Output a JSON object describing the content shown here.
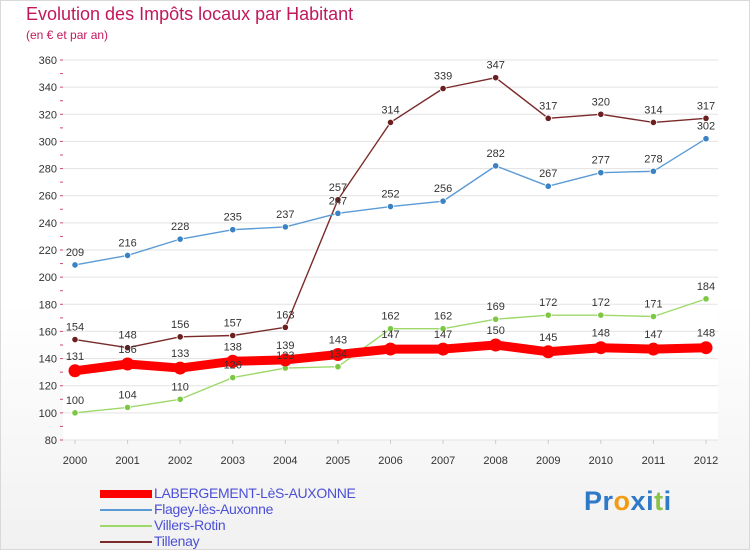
{
  "header": {
    "title": "Evolution des Impôts locaux par Habitant",
    "subtitle": "(en € et par an)"
  },
  "brand": {
    "text": "Proxiti",
    "letters": [
      {
        "ch": "P",
        "color": "#2f79c9"
      },
      {
        "ch": "r",
        "color": "#2f79c9"
      },
      {
        "ch": "o",
        "color": "#f39c12"
      },
      {
        "ch": "x",
        "color": "#2f79c9"
      },
      {
        "ch": "i",
        "color": "#2f79c9"
      },
      {
        "ch": "t",
        "color": "#8bc34a"
      },
      {
        "ch": "i",
        "color": "#2f79c9"
      }
    ]
  },
  "chart_data": {
    "type": "line",
    "title": "Evolution des Impôts locaux par Habitant",
    "subtitle": "(en € et par an)",
    "xlabel": "",
    "ylabel": "",
    "x": [
      "2000",
      "2001",
      "2002",
      "2003",
      "2004",
      "2005",
      "2006",
      "2007",
      "2008",
      "2009",
      "2010",
      "2011",
      "2012"
    ],
    "ylim": [
      80,
      360
    ],
    "yticks": [
      80,
      100,
      120,
      140,
      160,
      180,
      200,
      220,
      240,
      260,
      280,
      300,
      320,
      340,
      360
    ],
    "grid": "horizontal",
    "legend_position": "bottom-left",
    "series": [
      {
        "name": "LABERGEMENT-LèS-AUXONNE",
        "color": "#ff0000",
        "marker": "#ff0000",
        "emphasis": true,
        "values": [
          131,
          136,
          133,
          138,
          139,
          143,
          147,
          147,
          150,
          145,
          148,
          147,
          148
        ],
        "labels": [
          "131",
          "136",
          "133",
          "138",
          "139",
          "143",
          "147",
          "147",
          "150",
          "145",
          "148",
          "147",
          "148"
        ]
      },
      {
        "name": "Flagey-lès-Auxonne",
        "color": "#5b9bd5",
        "marker": "#3a82c4",
        "emphasis": false,
        "values": [
          209,
          216,
          228,
          235,
          237,
          247,
          252,
          256,
          282,
          267,
          277,
          278,
          302
        ],
        "labels": [
          "209",
          "216",
          "228",
          "235",
          "237",
          "247",
          "252",
          "256",
          "282",
          "267",
          "277",
          "278",
          "302"
        ]
      },
      {
        "name": "Villers-Rotin",
        "color": "#9ed86a",
        "marker": "#7cc843",
        "emphasis": false,
        "values": [
          100,
          104,
          110,
          126,
          133,
          134,
          162,
          162,
          169,
          172,
          172,
          171,
          184
        ],
        "labels": [
          "100",
          "104",
          "110",
          "126",
          "133",
          "134",
          "162",
          "162",
          "169",
          "172",
          "172",
          "171",
          "184"
        ]
      },
      {
        "name": "Tillenay",
        "color": "#7a2a2a",
        "marker": "#6b1f1f",
        "emphasis": false,
        "values": [
          154,
          148,
          156,
          157,
          163,
          257,
          314,
          339,
          347,
          317,
          320,
          314,
          317
        ],
        "labels": [
          "154",
          "148",
          "156",
          "157",
          "163",
          "257",
          "314",
          "339",
          "347",
          "317",
          "320",
          "314",
          "317"
        ]
      }
    ]
  }
}
